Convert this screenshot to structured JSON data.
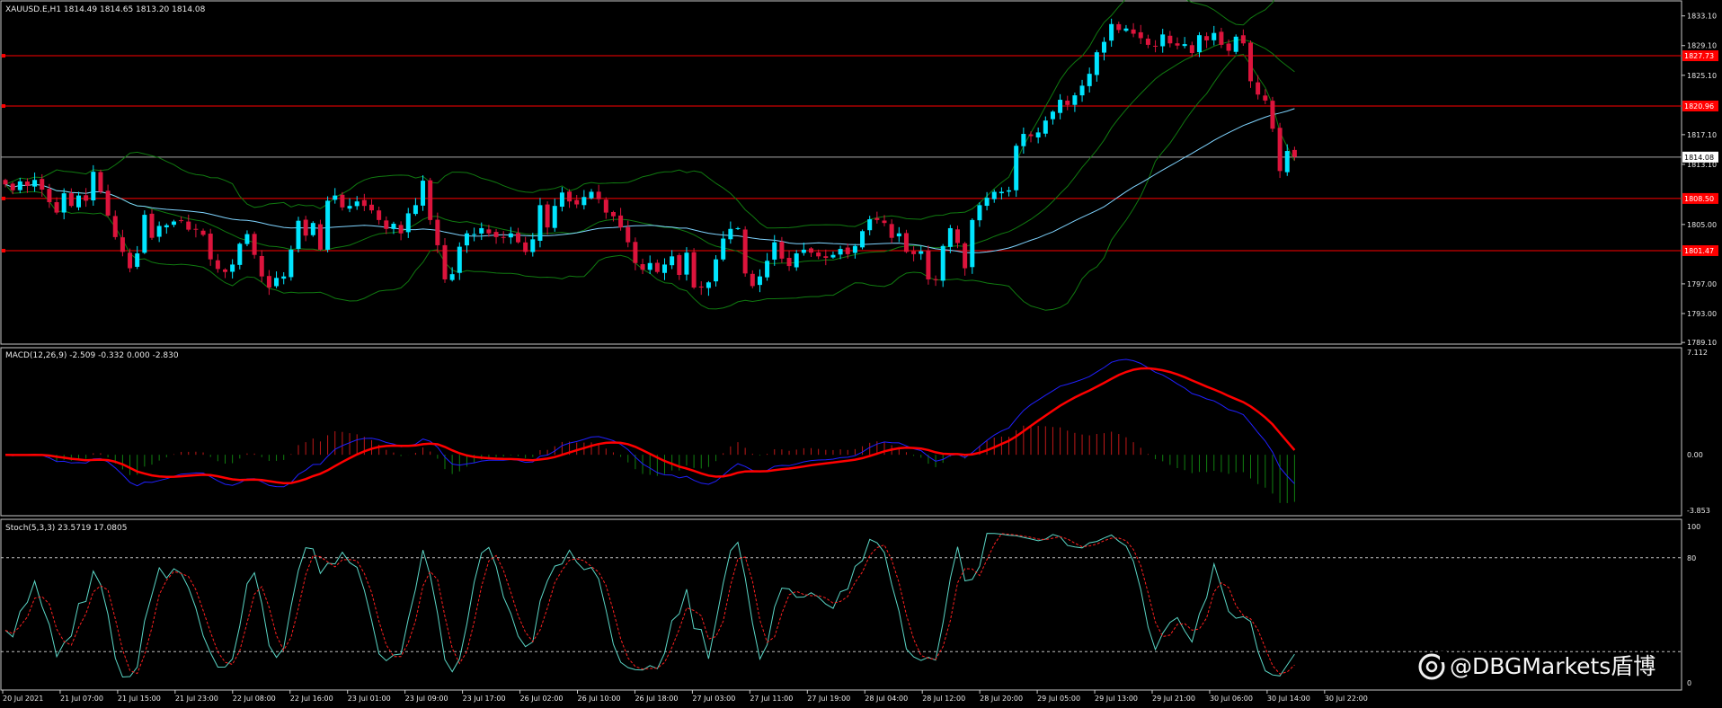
{
  "main_header": "XAUUSD.E,H1  1814.49 1814.65 1813.20 1814.08",
  "macd_header": "MACD(12,26,9) -2.509 -0.332 0.000 -2.830",
  "stoch_header": "Stoch(5,3,3) 23.5719 17.0805",
  "watermark": "@DBGMarkets盾博",
  "colors": {
    "background": "#000000",
    "frame": "#c8c8c8",
    "bull": "#00e5ff",
    "bear": "#dc143c",
    "level_line": "#ff0000",
    "level_box": "#ff0000",
    "bollinger": "#107a10",
    "ma_fast": "#7fd4ff",
    "macd_main": "#2020ff",
    "macd_signal": "#ff0000",
    "hist_pos": "#c01818",
    "hist_neg": "#108010",
    "stoch_main": "#5ad6c6",
    "stoch_signal": "#ff2020",
    "text": "#e8e8e8"
  },
  "chart_data": [
    {
      "type": "candlestick",
      "symbol": "XAUUSD.E",
      "timeframe": "H1",
      "ylim": [
        1789.0,
        1835.0
      ],
      "y_ticks": [
        {
          "value": 1833.1,
          "label": "1833.10"
        },
        {
          "value": 1829.1,
          "label": "1829.10"
        },
        {
          "value": 1825.1,
          "label": "1825.10"
        },
        {
          "value": 1817.1,
          "label": "1817.10"
        },
        {
          "value": 1813.1,
          "label": "1813.10"
        },
        {
          "value": 1805.0,
          "label": "1805.00"
        },
        {
          "value": 1797.0,
          "label": "1797.00"
        },
        {
          "value": 1793.0,
          "label": "1793.00"
        },
        {
          "value": 1789.1,
          "label": "1789.10"
        }
      ],
      "x_labels": [
        "20 Jul 2021",
        "21 Jul 07:00",
        "21 Jul 15:00",
        "21 Jul 23:00",
        "22 Jul 08:00",
        "22 Jul 16:00",
        "23 Jul 01:00",
        "23 Jul 09:00",
        "23 Jul 17:00",
        "26 Jul 02:00",
        "26 Jul 10:00",
        "26 Jul 18:00",
        "27 Jul 03:00",
        "27 Jul 11:00",
        "27 Jul 19:00",
        "28 Jul 04:00",
        "28 Jul 12:00",
        "28 Jul 20:00",
        "29 Jul 05:00",
        "29 Jul 13:00",
        "29 Jul 21:00",
        "30 Jul 06:00",
        "30 Jul 14:00",
        "30 Jul 22:00"
      ],
      "horizontal_levels": [
        {
          "value": 1827.73,
          "label": "1827.73"
        },
        {
          "value": 1820.96,
          "label": "1820.96"
        },
        {
          "value": 1808.5,
          "label": "1808.50"
        },
        {
          "value": 1801.47,
          "label": "1801.47"
        }
      ],
      "bid_line": {
        "value": 1814.08,
        "label": "1814.08"
      },
      "closes": [
        1810.4,
        1809.6,
        1810.8,
        1810.2,
        1811.0,
        1809.7,
        1808.0,
        1806.6,
        1809.2,
        1807.5,
        1808.9,
        1808.2,
        1812.1,
        1809.4,
        1806.2,
        1803.3,
        1801.3,
        1799.1,
        1801.1,
        1806.3,
        1803.2,
        1804.8,
        1804.9,
        1805.4,
        1805.5,
        1804.3,
        1804.3,
        1803.6,
        1800.3,
        1799.0,
        1798.6,
        1799.6,
        1802.4,
        1803.7,
        1800.9,
        1798.0,
        1796.5,
        1797.8,
        1798.0,
        1801.6,
        1805.5,
        1803.5,
        1805.2,
        1801.6,
        1808.2,
        1808.9,
        1807.3,
        1807.5,
        1808.1,
        1807.5,
        1806.9,
        1805.6,
        1804.4,
        1805.1,
        1803.8,
        1806.5,
        1807.6,
        1810.9,
        1805.6,
        1802.2,
        1797.6,
        1798.3,
        1802.0,
        1803.8,
        1803.7,
        1804.5,
        1803.8,
        1803.3,
        1803.3,
        1803.8,
        1802.6,
        1801.3,
        1803.0,
        1807.6,
        1804.6,
        1807.5,
        1809.3,
        1808.1,
        1807.7,
        1808.7,
        1809.4,
        1808.4,
        1806.6,
        1806.1,
        1804.6,
        1802.6,
        1799.8,
        1798.9,
        1799.8,
        1798.6,
        1799.6,
        1800.7,
        1798.2,
        1801.2,
        1796.5,
        1796.5,
        1797.2,
        1800.3,
        1803.1,
        1804.4,
        1804.5,
        1798.4,
        1796.7,
        1798.0,
        1800.1,
        1802.6,
        1800.4,
        1799.4,
        1801.1,
        1801.6,
        1801.2,
        1800.7,
        1800.5,
        1800.9,
        1801.7,
        1801.0,
        1802.1,
        1804.1,
        1805.7,
        1805.6,
        1805.2,
        1803.2,
        1803.8,
        1801.3,
        1801.0,
        1801.4,
        1797.6,
        1797.5,
        1802.1,
        1804.5,
        1802.5,
        1799.1,
        1805.6,
        1807.6,
        1808.6,
        1809.4,
        1809.4,
        1809.6,
        1815.6,
        1817.2,
        1816.9,
        1817.4,
        1819.0,
        1820.2,
        1821.8,
        1821.1,
        1822.4,
        1823.7,
        1825.3,
        1828.2,
        1829.6,
        1832.0,
        1831.2,
        1831.4,
        1830.7,
        1830.1,
        1829.2,
        1829.0,
        1830.6,
        1829.4,
        1829.1,
        1829.3,
        1828.1,
        1830.5,
        1829.8,
        1830.8,
        1829.2,
        1828.4,
        1830.3,
        1829.4,
        1824.3,
        1822.5,
        1821.7,
        1817.9,
        1812.2,
        1814.9,
        1814.1
      ],
      "bollinger_period": 20,
      "ma_period": 50
    },
    {
      "type": "line",
      "indicator": "MACD(12,26,9)",
      "series": [
        {
          "name": "-2.509",
          "role": "main"
        },
        {
          "name": "-0.332",
          "role": "signal"
        }
      ],
      "ylim": [
        -3.853,
        7.112
      ],
      "y_ticks": [
        {
          "value": 7.112,
          "label": "7.112"
        },
        {
          "value": 0.0,
          "label": "0.00"
        },
        {
          "value": -3.853,
          "label": "-3.853"
        }
      ]
    },
    {
      "type": "line",
      "indicator": "Stoch(5,3,3)",
      "series": [
        {
          "name": "23.5719",
          "role": "main"
        },
        {
          "name": "17.0805",
          "role": "signal"
        }
      ],
      "ylim": [
        0,
        100
      ],
      "levels": [
        80,
        20
      ],
      "y_ticks": [
        {
          "value": 100,
          "label": "100"
        },
        {
          "value": 80,
          "label": "80"
        },
        {
          "value": 0,
          "label": "0"
        }
      ]
    }
  ]
}
